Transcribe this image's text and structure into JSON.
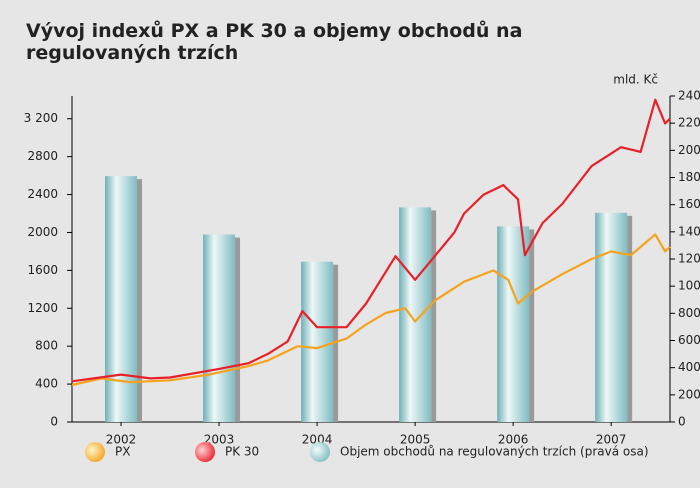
{
  "chart_data": {
    "type": "line",
    "title": "Vývoj indexů PX a PK 30 a objemy obchodů na regulovaných trzích",
    "y2_label": "mld. Kč",
    "xlim": [
      2002,
      2008.1
    ],
    "xticks": [
      {
        "value": 2002.5,
        "label": "2002"
      },
      {
        "value": 2003.5,
        "label": "2003"
      },
      {
        "value": 2004.5,
        "label": "2004"
      },
      {
        "value": 2005.5,
        "label": "2005"
      },
      {
        "value": 2006.5,
        "label": "2006"
      },
      {
        "value": 2007.5,
        "label": "2007"
      }
    ],
    "ylim": [
      0,
      3440
    ],
    "yticks": [
      0,
      400,
      800,
      1200,
      1600,
      2000,
      2400,
      2800,
      {
        "value": 3200,
        "label": "3 200"
      }
    ],
    "y2lim": [
      0,
      2400
    ],
    "y2ticks": [
      0,
      200,
      400,
      600,
      800,
      1000,
      1200,
      1400,
      1600,
      1800,
      2000,
      2200,
      2400
    ],
    "series": [
      {
        "name": "Objem obchodů na regulovaných trzích (pravá osa)",
        "type": "bar",
        "axis": "y2",
        "color": "#8cc3c8",
        "x": [
          2002.5,
          2003.5,
          2004.5,
          2005.5,
          2006.5,
          2007.5
        ],
        "values": [
          1810,
          1380,
          1180,
          1580,
          1440,
          1540
        ]
      },
      {
        "name": "PX",
        "type": "line",
        "color": "#f5a31e",
        "x": [
          2002.0,
          2002.3,
          2002.6,
          2003.0,
          2003.4,
          2003.8,
          2004.0,
          2004.3,
          2004.5,
          2004.8,
          2005.0,
          2005.2,
          2005.4,
          2005.5,
          2005.7,
          2006.0,
          2006.3,
          2006.45,
          2006.55,
          2006.7,
          2007.0,
          2007.3,
          2007.5,
          2007.7,
          2007.95,
          2008.05,
          2008.1
        ],
        "values": [
          390,
          460,
          420,
          440,
          500,
          590,
          650,
          800,
          780,
          880,
          1030,
          1150,
          1200,
          1060,
          1280,
          1480,
          1600,
          1500,
          1250,
          1380,
          1560,
          1720,
          1800,
          1760,
          1980,
          1800,
          1850
        ]
      },
      {
        "name": "PK 30",
        "type": "line",
        "color": "#e8202a",
        "x": [
          2002.0,
          2002.5,
          2002.8,
          2003.0,
          2003.5,
          2003.8,
          2004.0,
          2004.2,
          2004.35,
          2004.5,
          2004.8,
          2005.0,
          2005.3,
          2005.5,
          2005.7,
          2005.9,
          2006.0,
          2006.2,
          2006.4,
          2006.55,
          2006.62,
          2006.8,
          2007.0,
          2007.3,
          2007.6,
          2007.8,
          2007.95,
          2008.05,
          2008.1
        ],
        "values": [
          430,
          500,
          460,
          470,
          560,
          620,
          720,
          850,
          1170,
          1000,
          1000,
          1250,
          1750,
          1500,
          1750,
          2000,
          2200,
          2400,
          2500,
          2350,
          1760,
          2100,
          2300,
          2700,
          2900,
          2850,
          3400,
          3150,
          3200
        ]
      }
    ]
  }
}
